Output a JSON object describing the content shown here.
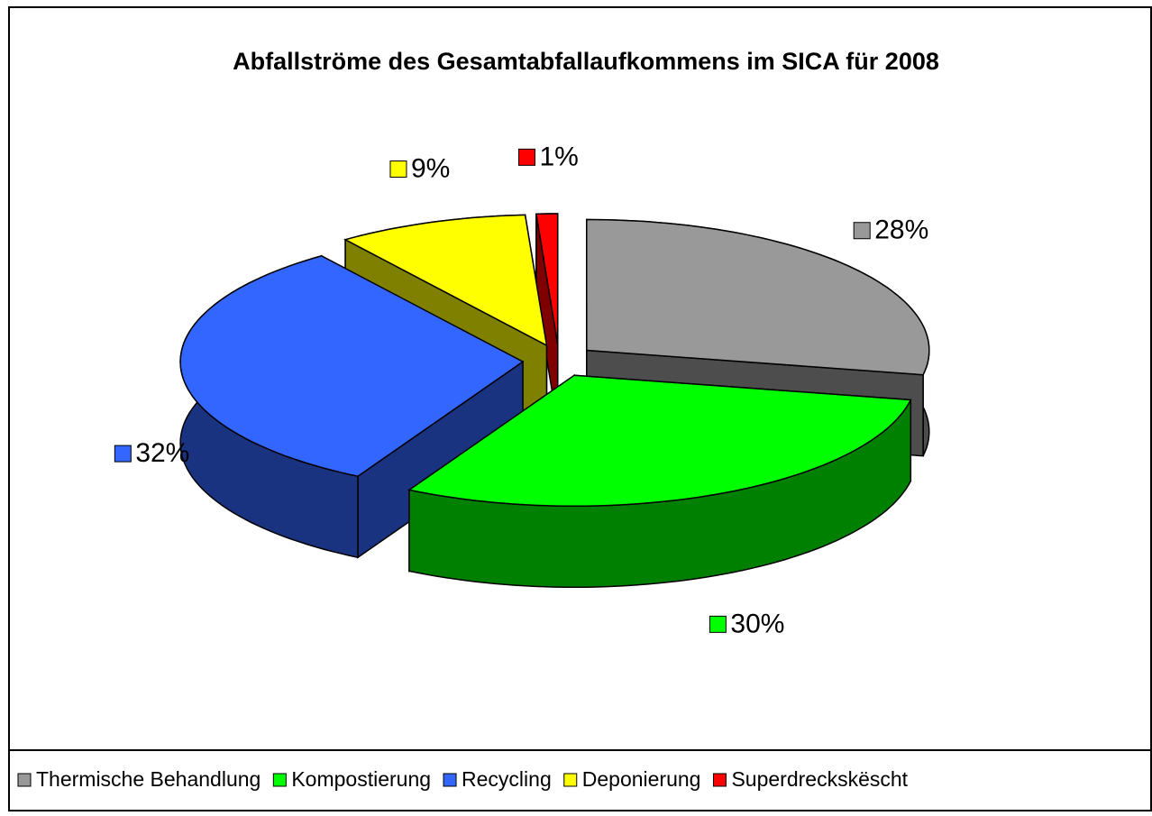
{
  "chart_data": {
    "type": "pie3d",
    "title": "Abfallströme des Gesamtabfallaufkommens im SICA für 2008",
    "categories": [
      "Thermische Behandlung",
      "Kompostierung",
      "Recycling",
      "Deponierung",
      "Superdreckskëscht"
    ],
    "values": [
      28,
      30,
      32,
      9,
      1
    ],
    "value_labels": [
      "28%",
      "30%",
      "32%",
      "9%",
      "1%"
    ],
    "colors": [
      "#999999",
      "#00ff00",
      "#3366ff",
      "#ffff00",
      "#ff0000"
    ],
    "legend": "bottom"
  }
}
